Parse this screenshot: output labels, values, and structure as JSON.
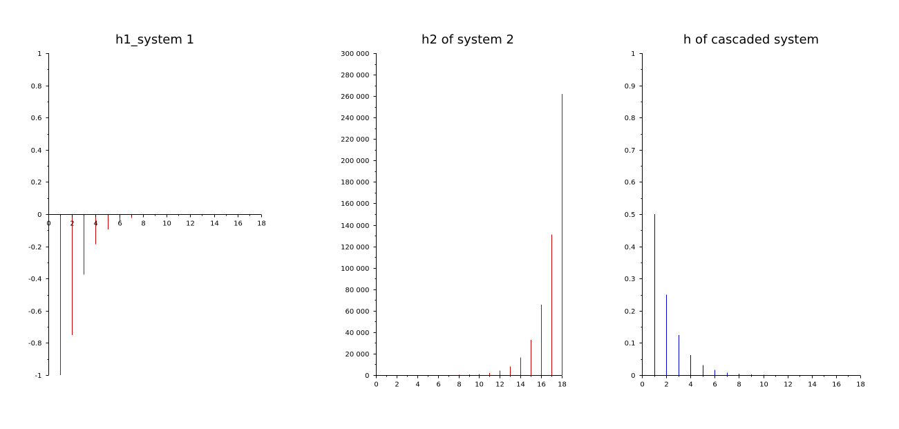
{
  "chart_data": [
    {
      "type": "stem",
      "title": "h1_system 1",
      "xlabel": "",
      "ylabel": "",
      "color": "#cc0000",
      "xlim": [
        0,
        18
      ],
      "ylim": [
        -1,
        1
      ],
      "x_axis_at": 0,
      "x_ticks": [
        0,
        2,
        4,
        6,
        8,
        10,
        12,
        14,
        16,
        18
      ],
      "x_tick_labels": [
        "0",
        "2",
        "4",
        "6",
        "8",
        "10",
        "12",
        "14",
        "16",
        "18"
      ],
      "y_ticks": [
        -1,
        -0.8,
        -0.6,
        -0.4,
        -0.2,
        0,
        0.2,
        0.4,
        0.6,
        0.8,
        1
      ],
      "y_tick_labels": [
        "-1",
        "-0.8",
        "-0.6",
        "-0.4",
        "-0.2",
        "0",
        "0.2",
        "0.4",
        "0.6",
        "0.8",
        "1"
      ],
      "x": [
        0,
        1,
        2,
        3,
        4,
        5,
        6,
        7,
        8,
        9,
        10,
        11,
        12,
        13,
        14,
        15,
        16,
        17,
        18
      ],
      "values": [
        1,
        -1,
        -0.75,
        -0.375,
        -0.1875,
        -0.09375,
        -0.046875,
        -0.0234375,
        -0.01171875,
        -0.005859375,
        -0.0029296875,
        -0.00146484375,
        -0.000732421875,
        -0.0003662109375,
        -0.00018310546875,
        -9.1552734375e-05,
        -4.57763671875e-05,
        -2.288818359375e-05,
        -1.1444091796875e-05
      ],
      "grid": false
    },
    {
      "type": "stem",
      "title": "h2 of system 2",
      "xlabel": "",
      "ylabel": "",
      "color": "#cc0000",
      "xlim": [
        0,
        18
      ],
      "ylim": [
        0,
        300000
      ],
      "x_axis_at": 0,
      "x_ticks": [
        0,
        2,
        4,
        6,
        8,
        10,
        12,
        14,
        16,
        18
      ],
      "x_tick_labels": [
        "0",
        "2",
        "4",
        "6",
        "8",
        "10",
        "12",
        "14",
        "16",
        "18"
      ],
      "y_ticks": [
        0,
        20000,
        40000,
        60000,
        80000,
        100000,
        120000,
        140000,
        160000,
        180000,
        200000,
        220000,
        240000,
        260000,
        280000,
        300000
      ],
      "y_tick_labels": [
        "0",
        "20 000",
        "40 000",
        "60 000",
        "80 000",
        "100 000",
        "120 000",
        "140 000",
        "160 000",
        "180 000",
        "200 000",
        "220 000",
        "240 000",
        "260 000",
        "280 000",
        "300 000"
      ],
      "x": [
        0,
        1,
        2,
        3,
        4,
        5,
        6,
        7,
        8,
        9,
        10,
        11,
        12,
        13,
        14,
        15,
        16,
        17,
        18
      ],
      "values": [
        1,
        2,
        4,
        8,
        16,
        32,
        64,
        128,
        256,
        512,
        1024,
        2048,
        4096,
        8192,
        16384,
        32768,
        65536,
        131072,
        262144
      ],
      "grid": false
    },
    {
      "type": "stem",
      "title": "h of cascaded system",
      "xlabel": "",
      "ylabel": "",
      "color": "#0000cc",
      "xlim": [
        0,
        18
      ],
      "ylim": [
        0,
        1
      ],
      "x_axis_at": 0,
      "x_ticks": [
        0,
        2,
        4,
        6,
        8,
        10,
        12,
        14,
        16,
        18
      ],
      "x_tick_labels": [
        "0",
        "2",
        "4",
        "6",
        "8",
        "10",
        "12",
        "14",
        "16",
        "18"
      ],
      "y_ticks": [
        0,
        0.1,
        0.2,
        0.3,
        0.4,
        0.5,
        0.6,
        0.7,
        0.8,
        0.9,
        1
      ],
      "y_tick_labels": [
        "0",
        "0.1",
        "0.2",
        "0.3",
        "0.4",
        "0.5",
        "0.6",
        "0.7",
        "0.8",
        "0.9",
        "1"
      ],
      "x": [
        0,
        1,
        2,
        3,
        4,
        5,
        6,
        7,
        8,
        9,
        10,
        11,
        12,
        13,
        14,
        15,
        16,
        17,
        18
      ],
      "values": [
        0,
        0.5,
        0.25,
        0.125,
        0.0625,
        0.03125,
        0.015625,
        0.0078125,
        0.00390625,
        0.001953125,
        0.0009765625,
        0.00048828125,
        0.000244140625,
        0.0001220703125,
        6.103515625e-05,
        3.0517578125e-05,
        1.52587890625e-05,
        7.62939453125e-06,
        3.814697265625e-06
      ],
      "grid": false
    }
  ]
}
